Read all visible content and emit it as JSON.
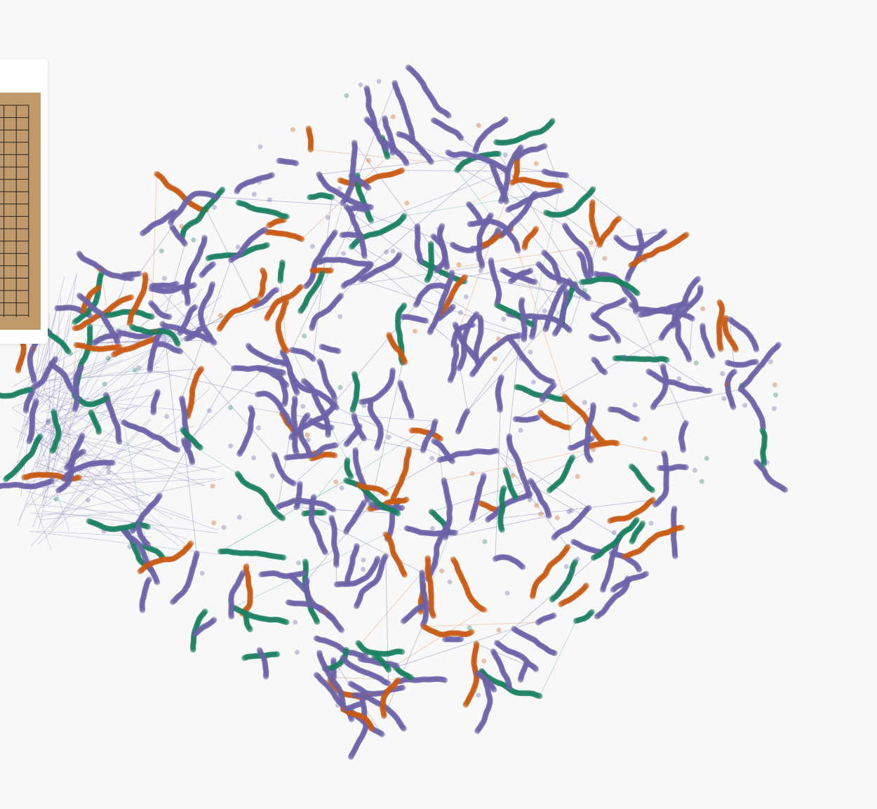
{
  "visualization": {
    "colors": {
      "purple": "#6b63a8",
      "orange": "#c85a12",
      "green": "#1a8060",
      "edge_purple": "#8f8cc0",
      "edge_orange": "#e8a377",
      "edge_green": "#86c3ad",
      "background": "#f8f8f8"
    },
    "trajectory_colors": [
      "purple",
      "orange",
      "green"
    ]
  },
  "board": {
    "colors": {
      "wood": "#c19a6b",
      "line": "#222222"
    },
    "grid": "19x19"
  }
}
